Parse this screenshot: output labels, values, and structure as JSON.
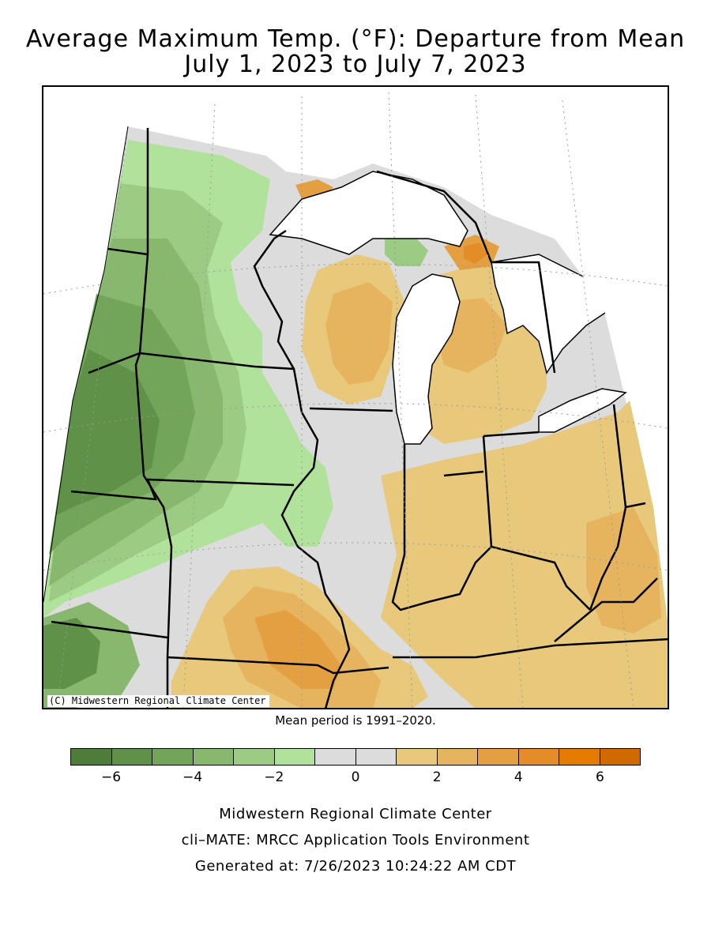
{
  "title": {
    "line1": "Average Maximum Temp. (°F): Departure from Mean",
    "line2": "July 1, 2023 to July 7, 2023"
  },
  "copyright": "(C) Midwestern Regional Climate Center",
  "mean_period": "Mean period is 1991–2020.",
  "legend": {
    "colors": [
      "#4e7d3a",
      "#5f9248",
      "#72a55a",
      "#87b86d",
      "#9ccc84",
      "#b1e29b",
      "#dcdcdc",
      "#dcdcdc",
      "#e8c87a",
      "#e6b45e",
      "#e4a040",
      "#e48c28",
      "#e57b00",
      "#d06900"
    ],
    "ticks": [
      {
        "label": "−6",
        "value": -6
      },
      {
        "label": "−4",
        "value": -4
      },
      {
        "label": "−2",
        "value": -2
      },
      {
        "label": "0",
        "value": 0
      },
      {
        "label": "2",
        "value": 2
      },
      {
        "label": "4",
        "value": 4
      },
      {
        "label": "6",
        "value": 6
      }
    ],
    "range": [
      -7,
      7
    ]
  },
  "footer": {
    "line1": "Midwestern Regional Climate Center",
    "line2": "cli–MATE: MRCC Application Tools Environment",
    "line3": "Generated at: 7/26/2023 10:24:22 AM CDT"
  }
}
